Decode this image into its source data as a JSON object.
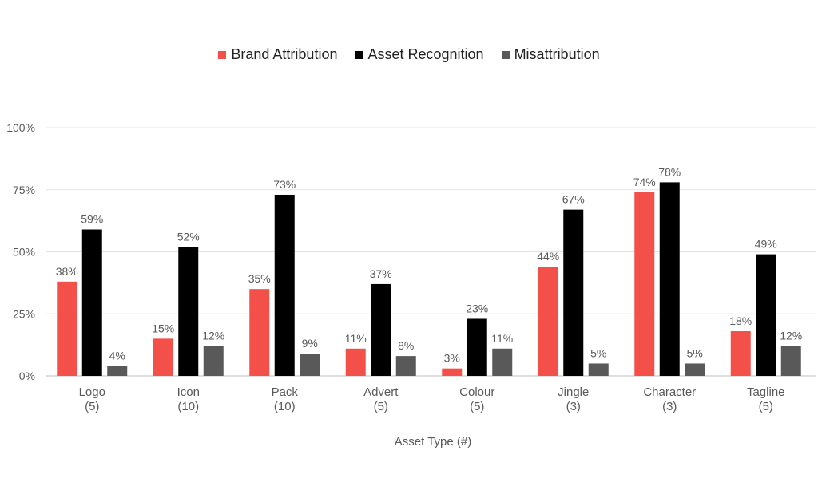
{
  "chart_data": {
    "type": "bar",
    "title": "",
    "xlabel": "Asset Type (#)",
    "ylabel": "",
    "ylim": [
      0,
      100
    ],
    "yticks": [
      "0%",
      "25%",
      "50%",
      "75%",
      "100%"
    ],
    "ytick_values": [
      0,
      25,
      50,
      75,
      100
    ],
    "grid": true,
    "legend_position": "top",
    "categories": [
      [
        "Logo",
        "(5)"
      ],
      [
        "Icon",
        "(10)"
      ],
      [
        "Pack",
        "(10)"
      ],
      [
        "Advert",
        "(5)"
      ],
      [
        "Colour",
        "(5)"
      ],
      [
        "Jingle",
        "(3)"
      ],
      [
        "Character",
        "(3)"
      ],
      [
        "Tagline",
        "(5)"
      ]
    ],
    "series": [
      {
        "name": "Brand Attribution",
        "color": "#f4504a",
        "values": [
          38,
          15,
          35,
          11,
          3,
          44,
          74,
          18
        ]
      },
      {
        "name": "Asset Recognition",
        "color": "#000000",
        "values": [
          59,
          52,
          73,
          37,
          23,
          67,
          78,
          49
        ]
      },
      {
        "name": "Misattribution",
        "color": "#595959",
        "values": [
          4,
          12,
          9,
          8,
          11,
          5,
          5,
          12
        ]
      }
    ]
  }
}
